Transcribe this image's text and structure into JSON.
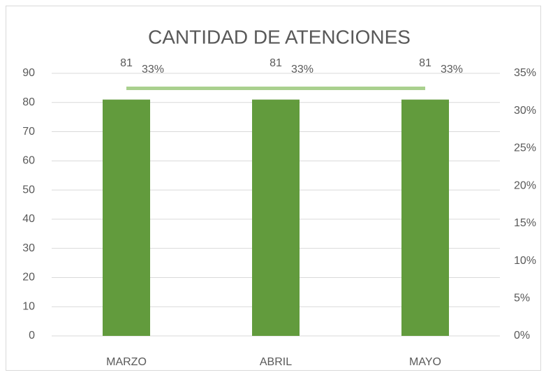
{
  "chart_data": {
    "type": "bar",
    "title": "CANTIDAD DE ATENCIONES",
    "categories": [
      "MARZO",
      "ABRIL",
      "MAYO"
    ],
    "series": [
      {
        "type": "bar",
        "color": "#629b3d",
        "values": [
          81,
          81,
          81
        ]
      },
      {
        "type": "line",
        "axis": "y2",
        "color": "#a9d08e",
        "values": [
          33,
          33,
          33
        ],
        "value_labels": [
          "33%",
          "33%",
          "33%"
        ]
      }
    ],
    "ylim": [
      0,
      90
    ],
    "yticks": [
      0,
      10,
      20,
      30,
      40,
      50,
      60,
      70,
      80,
      90
    ],
    "y2lim": [
      0,
      35
    ],
    "y2ticks": [
      {
        "value": 0,
        "label": "0%"
      },
      {
        "value": 5,
        "label": "5%"
      },
      {
        "value": 10,
        "label": "10%"
      },
      {
        "value": 15,
        "label": "15%"
      },
      {
        "value": 20,
        "label": "20%"
      },
      {
        "value": 25,
        "label": "25%"
      },
      {
        "value": 30,
        "label": "30%"
      },
      {
        "value": 35,
        "label": "35%"
      }
    ],
    "grid": true
  }
}
